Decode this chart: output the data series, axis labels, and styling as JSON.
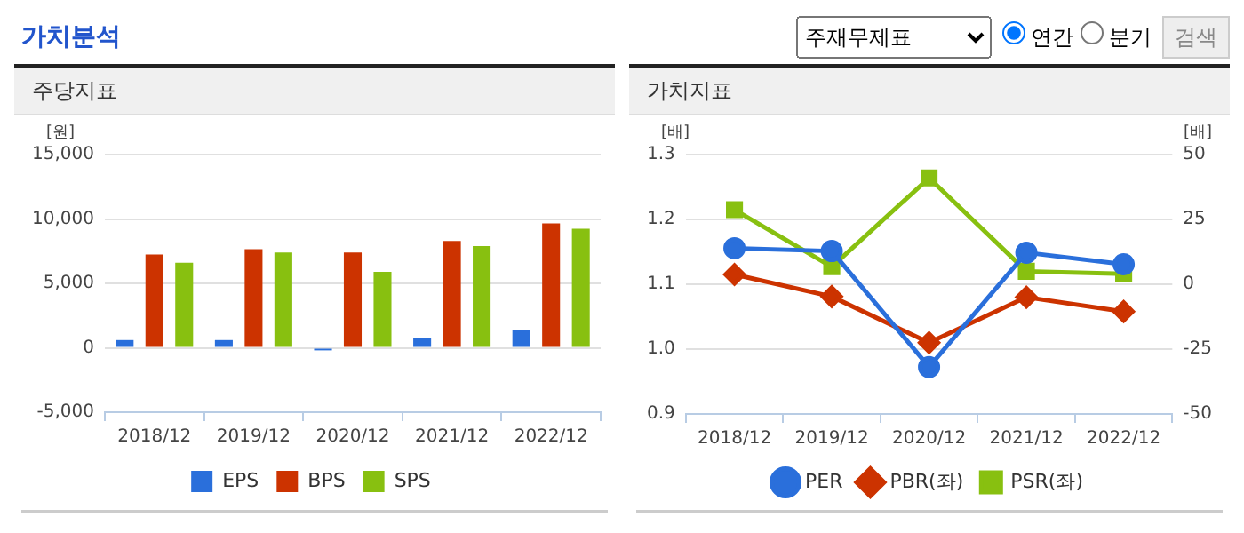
{
  "chart_data": [
    {
      "type": "other",
      "title": "가치분석",
      "annotations": [
        "주재무제표",
        "연간",
        "분기",
        "검색"
      ]
    },
    {
      "type": "bar",
      "title": "주당지표",
      "ylabel": "[원]",
      "categories": [
        "2018/12",
        "2019/12",
        "2020/12",
        "2021/12",
        "2022/12"
      ],
      "series": [
        {
          "name": "EPS",
          "color": "#2a6fdb",
          "values": [
            600,
            600,
            -200,
            750,
            1400
          ]
        },
        {
          "name": "BPS",
          "color": "#cc3300",
          "values": [
            7250,
            7650,
            7400,
            8300,
            9650
          ]
        },
        {
          "name": "SPS",
          "color": "#88c010",
          "values": [
            6600,
            7400,
            5900,
            7900,
            9250
          ]
        }
      ],
      "ylim": [
        -5000,
        15000
      ],
      "yticks": [
        {
          "value": -5000,
          "label": "-5,000"
        },
        0,
        {
          "value": 5000,
          "label": "5,000"
        },
        {
          "value": 10000,
          "label": "10,000"
        },
        {
          "value": 15000,
          "label": "15,000"
        }
      ],
      "grid": "y",
      "legend": "bottom"
    },
    {
      "type": "line",
      "title": "가치지표",
      "ylabel": "[배]",
      "y2label": "[배]",
      "categories": [
        "2018/12",
        "2019/12",
        "2020/12",
        "2021/12",
        "2022/12"
      ],
      "series": [
        {
          "name": "PER",
          "color": "#2a6fdb",
          "axis": "y2",
          "marker": "circle",
          "values": [
            13.9,
            12.8,
            -31.9,
            12.2,
            7.7
          ]
        },
        {
          "name": "PBR(좌)",
          "color": "#cc3300",
          "marker": "diamond",
          "values": [
            1.115,
            1.081,
            1.01,
            1.08,
            1.058
          ]
        },
        {
          "name": "PSR(좌)",
          "color": "#88c010",
          "marker": "square",
          "values": [
            1.215,
            1.127,
            1.264,
            1.12,
            1.116
          ]
        }
      ],
      "ylim": [
        0.9,
        1.3
      ],
      "yticks": [
        0.9,
        {
          "value": 1,
          "label": "1.0"
        },
        1.1,
        1.2,
        1.3
      ],
      "y2lim": [
        -50,
        50
      ],
      "y2ticks": [
        -50,
        -25,
        0,
        25,
        50
      ],
      "grid": "y",
      "legend": "bottom"
    }
  ]
}
